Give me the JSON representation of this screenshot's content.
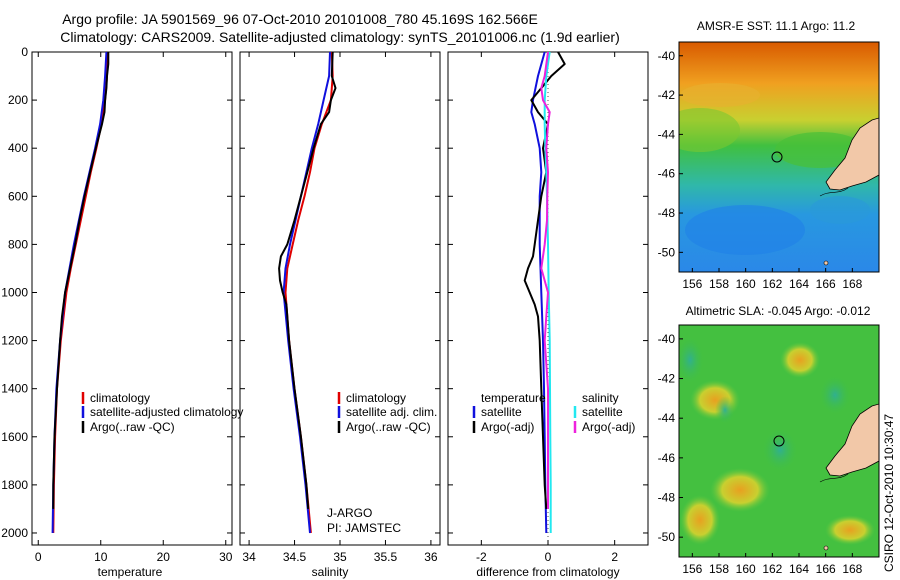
{
  "title_line1": "Argo profile: JA 5901569_96 07-Oct-2010 20101008_780 45.169S 162.566E",
  "title_line2": "Climatology: CARS2009. Satellite-adjusted climatology: synTS_20101006.nc (1.9d earlier)",
  "side_label": "CSIRO 12-Oct-2010 10:30:47",
  "colors": {
    "climatology": "#e00000",
    "satellite": "#1010dd",
    "argo": "#000000",
    "sat_sal": "#22e8f0",
    "argo_adj_sal": "#ee22dd"
  },
  "chart_data": [
    {
      "type": "line",
      "name": "temperature-profile",
      "xlabel": "temperature",
      "xlim": [
        -1,
        31
      ],
      "ylim": [
        0,
        2050
      ],
      "xticks": [
        "0",
        "10",
        "20",
        "30"
      ],
      "xtick_values": [
        0,
        10,
        20,
        30
      ],
      "yticks": [
        "0",
        "200",
        "400",
        "600",
        "800",
        "1000",
        "1200",
        "1400",
        "1600",
        "1800",
        "2000"
      ],
      "ytick_values": [
        0,
        200,
        400,
        600,
        800,
        1000,
        1200,
        1400,
        1600,
        1800,
        2000
      ],
      "legend": [
        "climatology",
        "satellite-adjusted climatology",
        "Argo(..raw -QC)"
      ],
      "series": [
        {
          "name": "climatology",
          "color": "#e00000",
          "depth": [
            0,
            100,
            200,
            300,
            400,
            500,
            600,
            700,
            800,
            900,
            1000,
            1200,
            1400,
            1600,
            1800,
            2000
          ],
          "values": [
            11.1,
            11.0,
            10.7,
            10.1,
            9.3,
            8.4,
            7.6,
            6.8,
            6.0,
            5.2,
            4.5,
            3.6,
            3.0,
            2.7,
            2.5,
            2.4
          ]
        },
        {
          "name": "satellite-adjusted climatology",
          "color": "#1010dd",
          "depth": [
            0,
            100,
            200,
            300,
            400,
            500,
            600,
            700,
            800,
            900,
            1000,
            1200,
            1400,
            1600,
            1800,
            2000
          ],
          "values": [
            10.9,
            10.7,
            10.4,
            9.9,
            9.1,
            8.2,
            7.3,
            6.5,
            5.7,
            5.0,
            4.3,
            3.5,
            2.9,
            2.6,
            2.4,
            2.3
          ]
        },
        {
          "name": "Argo(..raw -QC)",
          "color": "#000000",
          "depth": [
            0,
            50,
            100,
            150,
            200,
            250,
            300,
            400,
            500,
            600,
            700,
            800,
            900,
            950,
            1000,
            1100,
            1200,
            1400,
            1600,
            1800,
            1900
          ],
          "values": [
            11.2,
            11.2,
            11.0,
            10.9,
            10.7,
            10.6,
            10.2,
            9.2,
            8.3,
            7.4,
            6.6,
            5.9,
            5.1,
            4.7,
            4.3,
            3.8,
            3.5,
            3.0,
            2.6,
            2.4,
            2.4
          ]
        }
      ]
    },
    {
      "type": "line",
      "name": "salinity-profile",
      "xlabel": "salinity",
      "xlim": [
        33.9,
        36.1
      ],
      "ylim": [
        0,
        2050
      ],
      "xticks": [
        "34",
        "34.5",
        "35",
        "35.5",
        "36"
      ],
      "xtick_values": [
        34,
        34.5,
        35,
        35.5,
        36
      ],
      "legend": [
        "climatology",
        "satellite adj. clim.",
        "Argo(..raw -QC)"
      ],
      "annotation": [
        "J-ARGO",
        "PI: JAMSTEC"
      ],
      "series": [
        {
          "name": "climatology",
          "color": "#e00000",
          "depth": [
            0,
            100,
            200,
            300,
            400,
            500,
            600,
            700,
            800,
            900,
            1000,
            1200,
            1400,
            1600,
            1800,
            2000
          ],
          "values": [
            34.91,
            34.92,
            34.9,
            34.8,
            34.72,
            34.67,
            34.61,
            34.54,
            34.48,
            34.42,
            34.4,
            34.44,
            34.5,
            34.57,
            34.63,
            34.68
          ]
        },
        {
          "name": "satellite adj. clim.",
          "color": "#1010dd",
          "depth": [
            0,
            100,
            200,
            300,
            400,
            500,
            600,
            700,
            800,
            900,
            1000,
            1200,
            1400,
            1600,
            1800,
            2000
          ],
          "values": [
            34.89,
            34.88,
            34.82,
            34.76,
            34.69,
            34.63,
            34.57,
            34.51,
            34.45,
            34.4,
            34.38,
            34.43,
            34.49,
            34.56,
            34.62,
            34.67
          ]
        },
        {
          "name": "Argo(..raw -QC)",
          "color": "#000000",
          "depth": [
            0,
            100,
            150,
            200,
            250,
            300,
            400,
            500,
            600,
            700,
            800,
            850,
            900,
            950,
            1000,
            1050,
            1100,
            1200,
            1400,
            1600,
            1800,
            1900
          ],
          "values": [
            34.92,
            34.91,
            34.95,
            34.9,
            34.88,
            34.79,
            34.71,
            34.64,
            34.57,
            34.5,
            34.42,
            34.35,
            34.33,
            34.34,
            34.37,
            34.41,
            34.42,
            34.44,
            34.5,
            34.57,
            34.63,
            34.65
          ]
        }
      ]
    },
    {
      "type": "line",
      "name": "difference-profile",
      "xlabel": "difference from climatology",
      "xlim": [
        -3,
        3
      ],
      "ylim": [
        0,
        2050
      ],
      "xticks": [
        "-2",
        "0",
        "2"
      ],
      "xtick_values": [
        -2,
        0,
        2
      ],
      "legend_temperature": [
        "temperature",
        "satellite",
        "Argo(-adj)"
      ],
      "legend_salinity": [
        "salinity",
        "satellite",
        "Argo(-adj)"
      ],
      "series": [
        {
          "name": "temperature satellite",
          "color": "#1010dd",
          "depth": [
            0,
            100,
            200,
            250,
            300,
            400,
            500,
            600,
            700,
            800,
            1000,
            1200,
            1400,
            1600,
            1800,
            2000
          ],
          "values": [
            -0.1,
            -0.3,
            -0.45,
            -0.5,
            -0.4,
            -0.25,
            -0.2,
            -0.25,
            -0.25,
            -0.25,
            -0.2,
            -0.15,
            -0.12,
            -0.1,
            -0.08,
            -0.05
          ]
        },
        {
          "name": "temperature Argo(-adj)",
          "color": "#000000",
          "depth": [
            0,
            50,
            100,
            150,
            200,
            250,
            300,
            400,
            500,
            600,
            700,
            800,
            850,
            900,
            950,
            1000,
            1050,
            1100,
            1200,
            1400,
            1600,
            1800,
            1900
          ],
          "values": [
            0.3,
            0.5,
            0.1,
            -0.2,
            -0.5,
            -0.3,
            0.0,
            -0.15,
            -0.05,
            -0.2,
            -0.3,
            -0.4,
            -0.45,
            -0.6,
            -0.7,
            -0.55,
            -0.4,
            -0.3,
            -0.25,
            -0.2,
            -0.15,
            -0.1,
            -0.05
          ]
        },
        {
          "name": "salinity satellite",
          "color": "#22e8f0",
          "depth": [
            0,
            100,
            200,
            300,
            400,
            500,
            600,
            800,
            1000,
            1200,
            1400,
            1600,
            1800,
            2000
          ],
          "values": [
            0.05,
            -0.05,
            -0.1,
            -0.1,
            -0.08,
            -0.05,
            -0.03,
            0.0,
            0.02,
            0.05,
            0.06,
            0.07,
            0.08,
            0.08
          ]
        },
        {
          "name": "salinity Argo(-adj)",
          "color": "#ee22dd",
          "depth": [
            0,
            100,
            150,
            200,
            250,
            300,
            400,
            500,
            600,
            700,
            800,
            850,
            900,
            1000,
            1100,
            1200,
            1400,
            1600,
            1800,
            1900
          ],
          "values": [
            0.0,
            -0.1,
            -0.2,
            -0.15,
            0.05,
            0.0,
            -0.05,
            0.0,
            -0.02,
            -0.03,
            -0.1,
            -0.15,
            -0.2,
            0.0,
            -0.05,
            -0.1,
            0.0,
            0.0,
            0.0,
            0.0
          ]
        }
      ]
    },
    {
      "type": "heatmap",
      "name": "sst-map",
      "title": "AMSR-E SST: 11.1  Argo: 11.2",
      "xticks": [
        "156",
        "158",
        "160",
        "162",
        "164",
        "166",
        "168"
      ],
      "yticks": [
        "-40",
        "-42",
        "-44",
        "-46",
        "-48",
        "-50"
      ],
      "marker": {
        "lon": 162.566,
        "lat": -45.169
      }
    },
    {
      "type": "heatmap",
      "name": "sla-map",
      "title": "Altimetric SLA: -0.045  Argo: -0.012",
      "xticks": [
        "156",
        "158",
        "160",
        "162",
        "164",
        "166",
        "168"
      ],
      "yticks": [
        "-40",
        "-42",
        "-44",
        "-46",
        "-48",
        "-50"
      ],
      "marker": {
        "lon": 162.566,
        "lat": -45.169
      }
    }
  ]
}
